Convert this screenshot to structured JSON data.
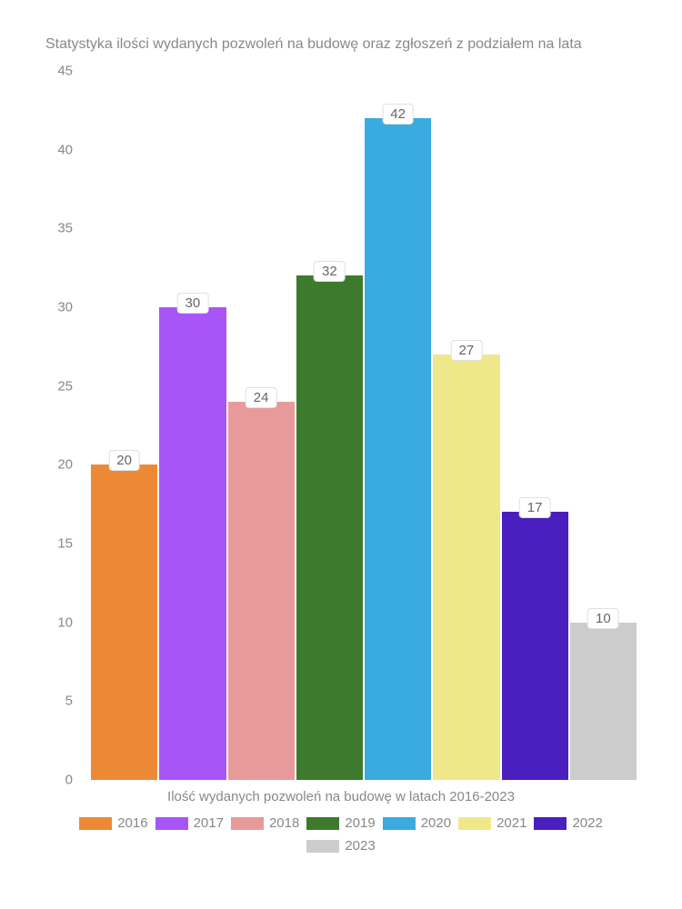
{
  "chart": {
    "type": "bar",
    "title": "Statystyka ilości wydanych pozwoleń na budowę oraz zgłoszeń z podziałem na lata",
    "xlabel": "Ilość wydanych pozwoleń na budowę w latach 2016-2023",
    "ymax": 45,
    "yticks": [
      0,
      5,
      10,
      15,
      20,
      25,
      30,
      35,
      40,
      45
    ],
    "background_color": "#ffffff",
    "text_color": "#888888",
    "label_fontsize": 15,
    "title_fontsize": 16,
    "bars": [
      {
        "year": "2016",
        "value": 20,
        "color": "#ed8936"
      },
      {
        "year": "2017",
        "value": 30,
        "color": "#a855f7"
      },
      {
        "year": "2018",
        "value": 24,
        "color": "#e89a9a"
      },
      {
        "year": "2019",
        "value": 32,
        "color": "#3d7a2e"
      },
      {
        "year": "2020",
        "value": 42,
        "color": "#3aabe0"
      },
      {
        "year": "2021",
        "value": 27,
        "color": "#efe88a"
      },
      {
        "year": "2022",
        "value": 17,
        "color": "#4a1fbf"
      },
      {
        "year": "2023",
        "value": 10,
        "color": "#cccccc"
      }
    ],
    "bar_label_bg": "#ffffff",
    "bar_label_border": "#e0e0e0"
  }
}
